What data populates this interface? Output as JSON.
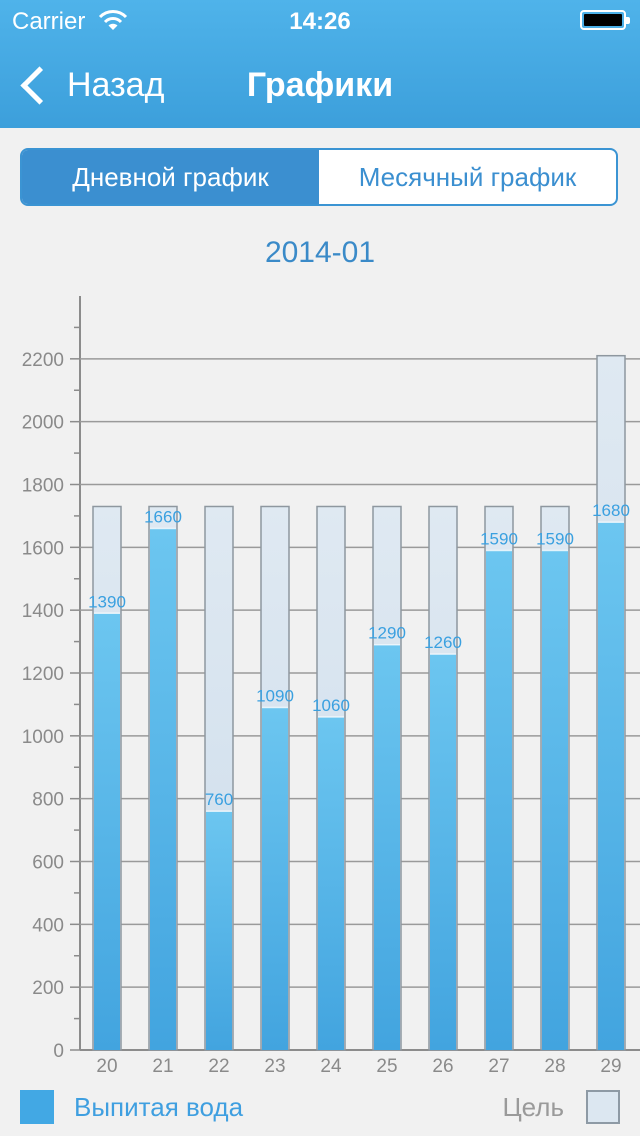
{
  "status_bar": {
    "carrier": "Carrier",
    "time": "14:26"
  },
  "nav": {
    "back_label": "Назад",
    "title": "Графики"
  },
  "segments": {
    "daily": "Дневной график",
    "monthly": "Месячный график",
    "selected": "daily"
  },
  "period_label": "2014-01",
  "legend": {
    "water_label": "Выпитая вода",
    "goal_label": "Цель",
    "water_color": "#42a8e4",
    "goal_color": "#dce7f1"
  },
  "chart_data": {
    "type": "bar",
    "categories": [
      "20",
      "21",
      "22",
      "23",
      "24",
      "25",
      "26",
      "27",
      "28",
      "29"
    ],
    "series": [
      {
        "name": "Выпитая вода",
        "values": [
          1390,
          1660,
          760,
          1090,
          1060,
          1290,
          1260,
          1590,
          1590,
          1680
        ]
      },
      {
        "name": "Цель",
        "values": [
          1730,
          1730,
          1730,
          1730,
          1730,
          1730,
          1730,
          1730,
          1730,
          2210
        ]
      }
    ],
    "data_labels": [
      "1390",
      "1660",
      "760",
      "1090",
      "1060",
      "1290",
      "1260",
      "1590",
      "1590",
      "1680"
    ],
    "y_ticks": [
      "0",
      "200",
      "400",
      "600",
      "800",
      "1000",
      "1200",
      "1400",
      "1600",
      "1800",
      "2000",
      "2200"
    ],
    "ylim": [
      0,
      2400
    ],
    "grid": true,
    "legend_position": "bottom"
  }
}
